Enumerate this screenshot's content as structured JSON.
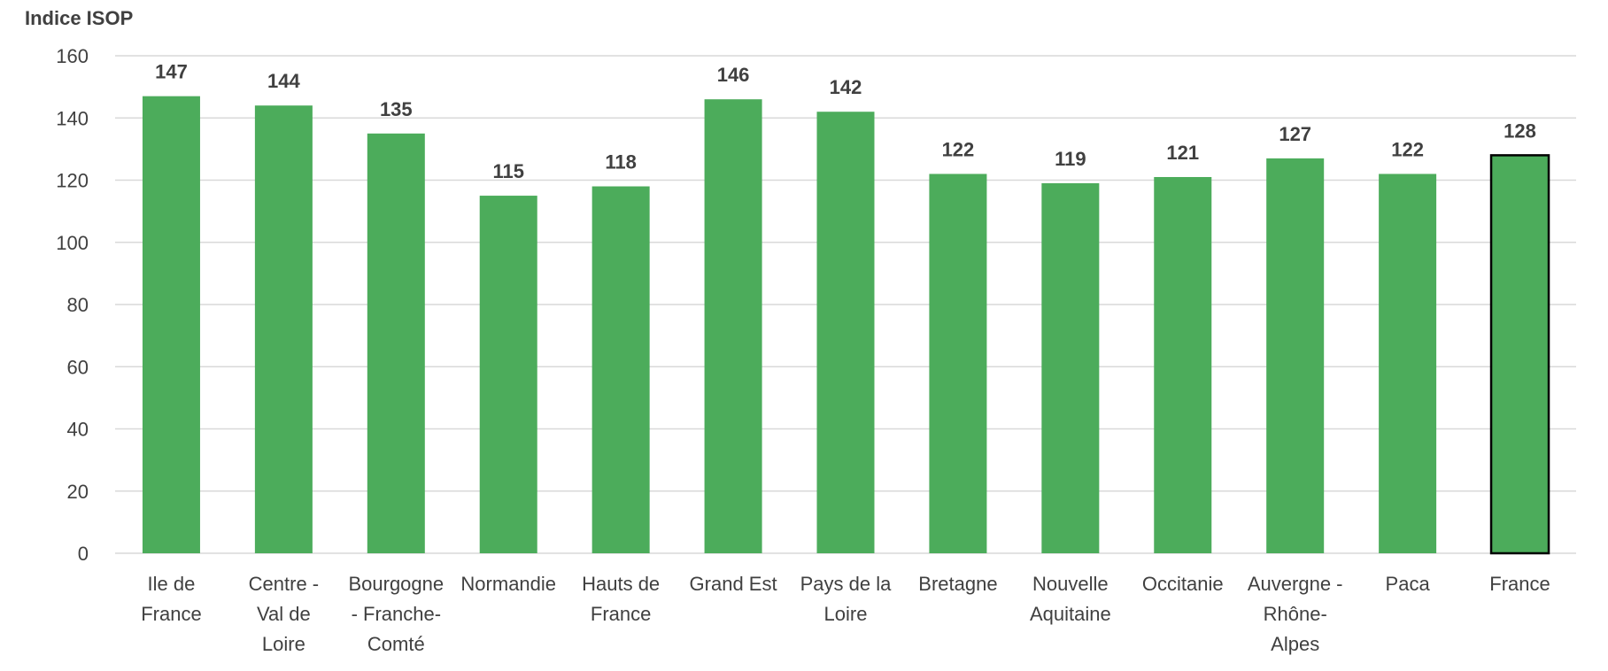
{
  "chart_data": {
    "type": "bar",
    "ylabel": "Indice ISOP",
    "ylim": [
      0,
      160
    ],
    "yticks": [
      0,
      20,
      40,
      60,
      80,
      100,
      120,
      140,
      160
    ],
    "grid": true,
    "categories": [
      [
        "Ile de",
        "France"
      ],
      [
        "Centre -",
        "Val de",
        "Loire"
      ],
      [
        "Bourgogne",
        "- Franche-",
        "Comté"
      ],
      [
        "Normandie"
      ],
      [
        "Hauts de",
        "France"
      ],
      [
        "Grand Est"
      ],
      [
        "Pays de la",
        "Loire"
      ],
      [
        "Bretagne"
      ],
      [
        "Nouvelle",
        "Aquitaine"
      ],
      [
        "Occitanie"
      ],
      [
        "Auvergne -",
        "Rhône-",
        "Alpes"
      ],
      [
        "Paca"
      ],
      [
        "France"
      ]
    ],
    "values": [
      147,
      144,
      135,
      115,
      118,
      146,
      142,
      122,
      119,
      121,
      127,
      122,
      128
    ],
    "value_labels": [
      "147",
      "144",
      "135",
      "115",
      "118",
      "146",
      "142",
      "122",
      "119",
      "121",
      "127",
      "122",
      "128"
    ],
    "highlight_index": 12,
    "colors": {
      "bar": "#4CAC5B",
      "highlight_border": "#000000",
      "grid": "#D9D9D9",
      "text": "#404040"
    }
  }
}
